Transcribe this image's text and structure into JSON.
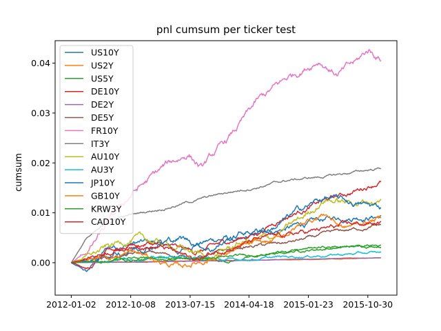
{
  "chart_data": {
    "type": "line",
    "title": "pnl cumsum per ticker test",
    "xlabel": "",
    "ylabel": "cumsum",
    "x_start": "2012-01-02",
    "x_end": "2015-12-31",
    "xlim": [
      "2011-10-18",
      "2016-03-15"
    ],
    "ylim": [
      -0.0065,
      0.0445
    ],
    "x_ticks": [
      "2012-01-02",
      "2012-10-08",
      "2013-07-15",
      "2014-04-18",
      "2015-01-23",
      "2015-10-30"
    ],
    "y_ticks": [
      0.0,
      0.01,
      0.02,
      0.03,
      0.04
    ],
    "y_tick_labels": [
      "0.00",
      "0.01",
      "0.02",
      "0.03",
      "0.04"
    ],
    "legend_position": "upper-left",
    "grid": false,
    "series": [
      {
        "name": "US10Y",
        "color": "#1f77b4",
        "keypoints": [
          [
            0,
            0
          ],
          [
            0.05,
            -0.002
          ],
          [
            0.12,
            0.003
          ],
          [
            0.2,
            0.004
          ],
          [
            0.28,
            0.004
          ],
          [
            0.35,
            0.002
          ],
          [
            0.4,
            0.004
          ],
          [
            0.5,
            0.005
          ],
          [
            0.55,
            0.004
          ],
          [
            0.62,
            0.006
          ],
          [
            0.7,
            0.007
          ],
          [
            0.78,
            0.008
          ],
          [
            0.86,
            0.009
          ],
          [
            0.92,
            0.0095
          ],
          [
            1.0,
            0.0095
          ]
        ],
        "noise": 0.0007
      },
      {
        "name": "US2Y",
        "color": "#ff7f0e",
        "keypoints": [
          [
            0,
            0
          ],
          [
            0.2,
            0.0002
          ],
          [
            0.4,
            0.0004
          ],
          [
            0.6,
            0.0005
          ],
          [
            0.8,
            0.0007
          ],
          [
            1.0,
            0.001
          ]
        ],
        "noise": 5e-05
      },
      {
        "name": "US5Y",
        "color": "#2ca02c",
        "keypoints": [
          [
            0,
            0
          ],
          [
            0.1,
            0.0005
          ],
          [
            0.3,
            0.001
          ],
          [
            0.45,
            0.0005
          ],
          [
            0.5,
            0.0003
          ],
          [
            0.62,
            0.0015
          ],
          [
            0.75,
            0.0025
          ],
          [
            0.85,
            0.003
          ],
          [
            1.0,
            0.0035
          ]
        ],
        "noise": 0.0003
      },
      {
        "name": "DE10Y",
        "color": "#d62728",
        "keypoints": [
          [
            0,
            0
          ],
          [
            0.06,
            -0.001
          ],
          [
            0.12,
            0.002
          ],
          [
            0.25,
            0.004
          ],
          [
            0.4,
            0.002
          ],
          [
            0.5,
            0.004
          ],
          [
            0.6,
            0.006
          ],
          [
            0.68,
            0.009
          ],
          [
            0.8,
            0.012
          ],
          [
            0.9,
            0.014
          ],
          [
            1.0,
            0.0165
          ]
        ],
        "noise": 0.0006
      },
      {
        "name": "DE2Y",
        "color": "#9467bd",
        "keypoints": [
          [
            0,
            0
          ],
          [
            0.3,
            0.0002
          ],
          [
            0.6,
            0.0005
          ],
          [
            0.8,
            0.0008
          ],
          [
            1.0,
            0.001
          ]
        ],
        "noise": 4e-05
      },
      {
        "name": "DE5Y",
        "color": "#8c564b",
        "keypoints": [
          [
            0,
            0
          ],
          [
            0.1,
            0.001
          ],
          [
            0.25,
            0.002
          ],
          [
            0.4,
            0.001
          ],
          [
            0.55,
            0.003
          ],
          [
            0.7,
            0.004
          ],
          [
            0.85,
            0.006
          ],
          [
            1.0,
            0.0075
          ]
        ],
        "noise": 0.0004
      },
      {
        "name": "FR10Y",
        "color": "#e377c2",
        "keypoints": [
          [
            0,
            0
          ],
          [
            0.05,
            0.002
          ],
          [
            0.1,
            0.006
          ],
          [
            0.2,
            0.014
          ],
          [
            0.3,
            0.019
          ],
          [
            0.38,
            0.022
          ],
          [
            0.42,
            0.019
          ],
          [
            0.5,
            0.024
          ],
          [
            0.6,
            0.032
          ],
          [
            0.7,
            0.037
          ],
          [
            0.8,
            0.041
          ],
          [
            0.86,
            0.038
          ],
          [
            0.92,
            0.04
          ],
          [
            0.96,
            0.0425
          ],
          [
            1.0,
            0.041
          ]
        ],
        "noise": 0.0009
      },
      {
        "name": "IT3Y",
        "color": "#7f7f7f",
        "keypoints": [
          [
            0,
            0
          ],
          [
            0.05,
            0.005
          ],
          [
            0.15,
            0.009
          ],
          [
            0.3,
            0.011
          ],
          [
            0.5,
            0.014
          ],
          [
            0.7,
            0.0165
          ],
          [
            0.85,
            0.0175
          ],
          [
            1.0,
            0.019
          ]
        ],
        "noise": 0.0003
      },
      {
        "name": "AU10Y",
        "color": "#bcbd22",
        "keypoints": [
          [
            0,
            0
          ],
          [
            0.08,
            0.002
          ],
          [
            0.2,
            0.005
          ],
          [
            0.35,
            0.003
          ],
          [
            0.45,
            0.001
          ],
          [
            0.55,
            0.004
          ],
          [
            0.65,
            0.005
          ],
          [
            0.75,
            0.009
          ],
          [
            0.82,
            0.013
          ],
          [
            0.9,
            0.012
          ],
          [
            1.0,
            0.0125
          ]
        ],
        "noise": 0.0008
      },
      {
        "name": "AU3Y",
        "color": "#17becf",
        "keypoints": [
          [
            0,
            0
          ],
          [
            0.15,
            0.0008
          ],
          [
            0.35,
            0.0012
          ],
          [
            0.5,
            0.0005
          ],
          [
            0.65,
            0.001
          ],
          [
            0.8,
            0.0015
          ],
          [
            1.0,
            0.002
          ]
        ],
        "noise": 0.0003
      },
      {
        "name": "JP10Y",
        "color": "#1f77b4",
        "keypoints": [
          [
            0,
            0
          ],
          [
            0.1,
            0.001
          ],
          [
            0.2,
            0.003
          ],
          [
            0.35,
            0.005
          ],
          [
            0.45,
            0.003
          ],
          [
            0.55,
            0.006
          ],
          [
            0.65,
            0.007
          ],
          [
            0.75,
            0.011
          ],
          [
            0.82,
            0.013
          ],
          [
            0.9,
            0.012
          ],
          [
            1.0,
            0.011
          ]
        ],
        "noise": 0.0008
      },
      {
        "name": "GB10Y",
        "color": "#ff7f0e",
        "keypoints": [
          [
            0,
            0
          ],
          [
            0.08,
            0.001
          ],
          [
            0.2,
            0.002
          ],
          [
            0.35,
            -0.001
          ],
          [
            0.45,
            0.001
          ],
          [
            0.55,
            0.003
          ],
          [
            0.65,
            0.004
          ],
          [
            0.75,
            0.008
          ],
          [
            0.82,
            0.01
          ],
          [
            0.88,
            0.007
          ],
          [
            1.0,
            0.009
          ]
        ],
        "noise": 0.0007
      },
      {
        "name": "KRW3Y",
        "color": "#2ca02c",
        "keypoints": [
          [
            0,
            0
          ],
          [
            0.15,
            0.0005
          ],
          [
            0.35,
            0.0008
          ],
          [
            0.5,
            0.001
          ],
          [
            0.65,
            0.002
          ],
          [
            0.8,
            0.003
          ],
          [
            1.0,
            0.0035
          ]
        ],
        "noise": 0.0003
      },
      {
        "name": "CAD10Y",
        "color": "#d62728",
        "keypoints": [
          [
            0,
            0
          ],
          [
            0.1,
            0.002
          ],
          [
            0.2,
            0.004
          ],
          [
            0.3,
            0.003
          ],
          [
            0.4,
            0.0005
          ],
          [
            0.5,
            0.003
          ],
          [
            0.6,
            0.0045
          ],
          [
            0.75,
            0.006
          ],
          [
            0.9,
            0.0075
          ],
          [
            1.0,
            0.008
          ]
        ],
        "noise": 0.0006
      }
    ]
  }
}
